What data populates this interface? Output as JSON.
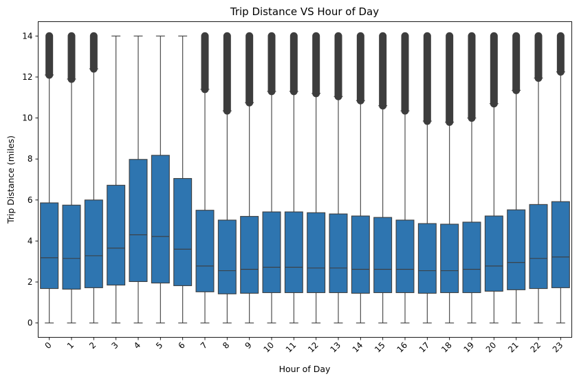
{
  "chart_data": {
    "type": "box",
    "title": "Trip Distance VS Hour of Day",
    "xlabel": "Hour of Day",
    "ylabel": "Trip Distance (miles)",
    "categories": [
      "0",
      "1",
      "2",
      "3",
      "4",
      "5",
      "6",
      "7",
      "8",
      "9",
      "10",
      "11",
      "12",
      "13",
      "14",
      "15",
      "16",
      "17",
      "18",
      "19",
      "20",
      "21",
      "22",
      "23"
    ],
    "y_ticks": [
      "0",
      "2",
      "4",
      "6",
      "8",
      "10",
      "12",
      "14"
    ],
    "ylim": [
      -0.7,
      14.7
    ],
    "grid": false,
    "box_color": "#2e75b0",
    "line_color": "#3d3d3d",
    "boxes": [
      {
        "hour": "0",
        "whisker_low": 0,
        "q1": 1.68,
        "median": 3.18,
        "q3": 5.86,
        "whisker_high": 12.1,
        "outliers_to": 14.0
      },
      {
        "hour": "1",
        "whisker_low": 0,
        "q1": 1.65,
        "median": 3.15,
        "q3": 5.75,
        "whisker_high": 11.9,
        "outliers_to": 14.0
      },
      {
        "hour": "2",
        "whisker_low": 0,
        "q1": 1.72,
        "median": 3.28,
        "q3": 6.0,
        "whisker_high": 12.4,
        "outliers_to": 14.0
      },
      {
        "hour": "3",
        "whisker_low": 0,
        "q1": 1.85,
        "median": 3.65,
        "q3": 6.72,
        "whisker_high": 14.0,
        "outliers_to": null
      },
      {
        "hour": "4",
        "whisker_low": 0,
        "q1": 2.02,
        "median": 4.3,
        "q3": 7.98,
        "whisker_high": 14.0,
        "outliers_to": null
      },
      {
        "hour": "5",
        "whisker_low": 0,
        "q1": 1.95,
        "median": 4.22,
        "q3": 8.18,
        "whisker_high": 14.0,
        "outliers_to": null
      },
      {
        "hour": "6",
        "whisker_low": 0,
        "q1": 1.82,
        "median": 3.6,
        "q3": 7.05,
        "whisker_high": 14.0,
        "outliers_to": null
      },
      {
        "hour": "7",
        "whisker_low": 0,
        "q1": 1.52,
        "median": 2.78,
        "q3": 5.5,
        "whisker_high": 11.4,
        "outliers_to": 14.0
      },
      {
        "hour": "8",
        "whisker_low": 0,
        "q1": 1.42,
        "median": 2.55,
        "q3": 5.02,
        "whisker_high": 10.35,
        "outliers_to": 14.0
      },
      {
        "hour": "9",
        "whisker_low": 0,
        "q1": 1.45,
        "median": 2.62,
        "q3": 5.2,
        "whisker_high": 10.75,
        "outliers_to": 14.0
      },
      {
        "hour": "10",
        "whisker_low": 0,
        "q1": 1.48,
        "median": 2.72,
        "q3": 5.42,
        "whisker_high": 11.3,
        "outliers_to": 14.0
      },
      {
        "hour": "11",
        "whisker_low": 0,
        "q1": 1.48,
        "median": 2.72,
        "q3": 5.42,
        "whisker_high": 11.3,
        "outliers_to": 14.0
      },
      {
        "hour": "12",
        "whisker_low": 0,
        "q1": 1.48,
        "median": 2.68,
        "q3": 5.38,
        "whisker_high": 11.2,
        "outliers_to": 14.0
      },
      {
        "hour": "13",
        "whisker_low": 0,
        "q1": 1.48,
        "median": 2.68,
        "q3": 5.32,
        "whisker_high": 11.05,
        "outliers_to": 14.0
      },
      {
        "hour": "14",
        "whisker_low": 0,
        "q1": 1.45,
        "median": 2.62,
        "q3": 5.22,
        "whisker_high": 10.85,
        "outliers_to": 14.0
      },
      {
        "hour": "15",
        "whisker_low": 0,
        "q1": 1.48,
        "median": 2.62,
        "q3": 5.15,
        "whisker_high": 10.6,
        "outliers_to": 14.0
      },
      {
        "hour": "16",
        "whisker_low": 0,
        "q1": 1.48,
        "median": 2.62,
        "q3": 5.02,
        "whisker_high": 10.35,
        "outliers_to": 14.0
      },
      {
        "hour": "17",
        "whisker_low": 0,
        "q1": 1.45,
        "median": 2.55,
        "q3": 4.85,
        "whisker_high": 9.85,
        "outliers_to": 14.0
      },
      {
        "hour": "18",
        "whisker_low": 0,
        "q1": 1.48,
        "median": 2.55,
        "q3": 4.82,
        "whisker_high": 9.8,
        "outliers_to": 14.0
      },
      {
        "hour": "19",
        "whisker_low": 0,
        "q1": 1.48,
        "median": 2.62,
        "q3": 4.92,
        "whisker_high": 10.0,
        "outliers_to": 14.0
      },
      {
        "hour": "20",
        "whisker_low": 0,
        "q1": 1.55,
        "median": 2.78,
        "q3": 5.22,
        "whisker_high": 10.7,
        "outliers_to": 14.0
      },
      {
        "hour": "21",
        "whisker_low": 0,
        "q1": 1.62,
        "median": 2.95,
        "q3": 5.52,
        "whisker_high": 11.35,
        "outliers_to": 14.0
      },
      {
        "hour": "22",
        "whisker_low": 0,
        "q1": 1.68,
        "median": 3.15,
        "q3": 5.78,
        "whisker_high": 11.95,
        "outliers_to": 14.0
      },
      {
        "hour": "23",
        "whisker_low": 0,
        "q1": 1.72,
        "median": 3.22,
        "q3": 5.92,
        "whisker_high": 12.25,
        "outliers_to": 14.0
      }
    ]
  }
}
